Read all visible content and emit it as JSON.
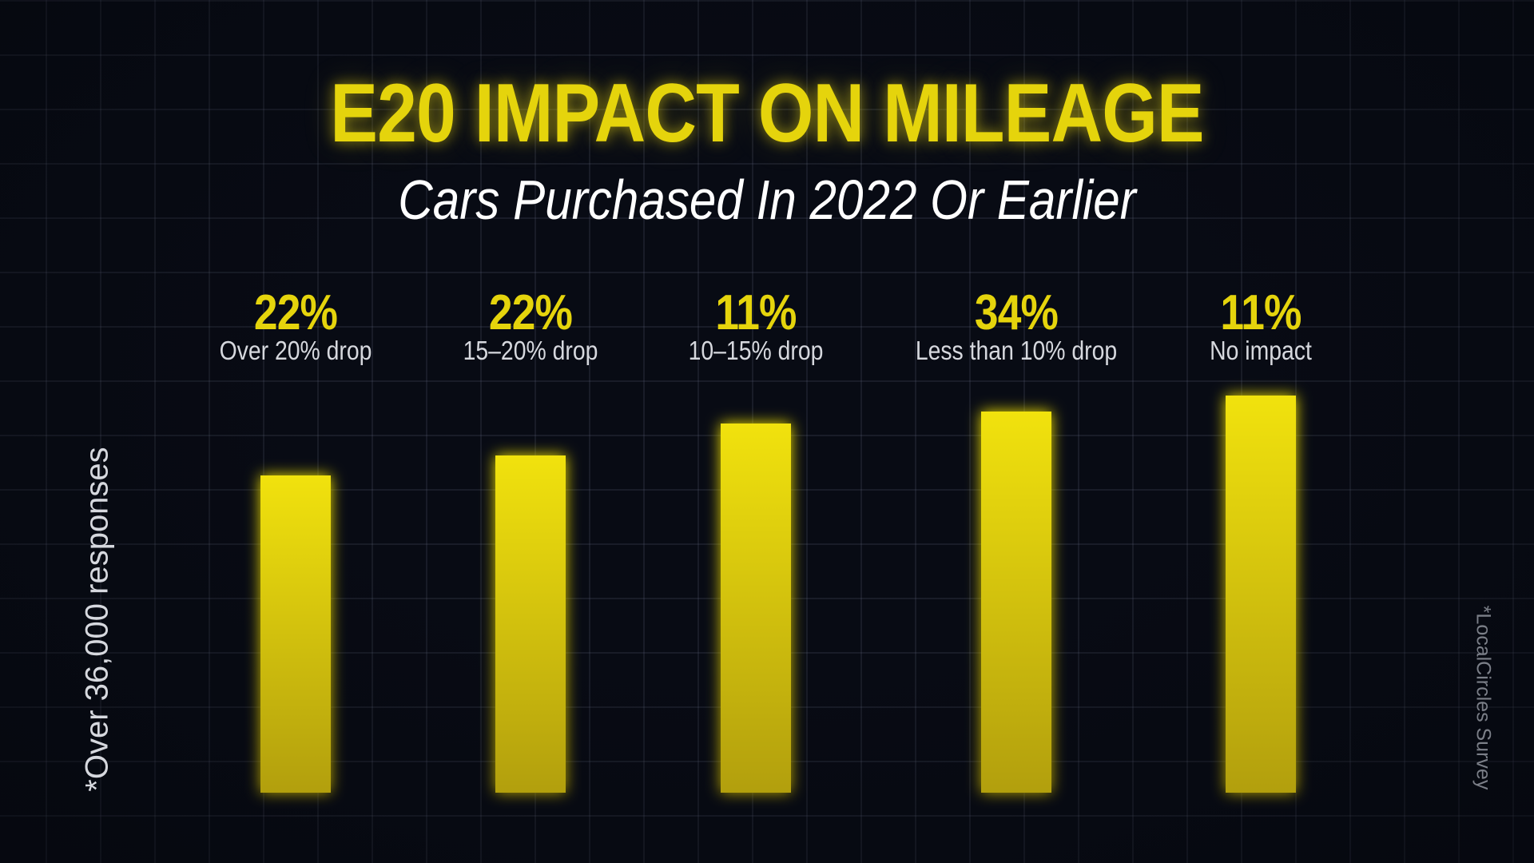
{
  "colors": {
    "background": "#080b14",
    "accent": "#e5d40c",
    "bar_top": "#f1e20f",
    "bar_bottom": "#b29f08",
    "label_text": "#d6d8de",
    "source_text": "#7b7f88"
  },
  "chart_data": {
    "type": "bar",
    "title": "E20 IMPACT ON MILEAGE",
    "subtitle": "Cars Purchased In 2022 Or Earlier",
    "categories": [
      "Over 20% drop",
      "15–20% drop",
      "10–15% drop",
      "Less than 10% drop",
      "No impact"
    ],
    "values": [
      22,
      22,
      11,
      34,
      11
    ],
    "value_labels": [
      "22%",
      "22%",
      "11%",
      "34%",
      "11%"
    ],
    "value_unit": "%",
    "xlabel": "",
    "ylabel": "",
    "grid": true,
    "legend": "none"
  },
  "notes": {
    "responses": "*Over 36,000 responses",
    "source": "*LocalCircles Survey"
  }
}
